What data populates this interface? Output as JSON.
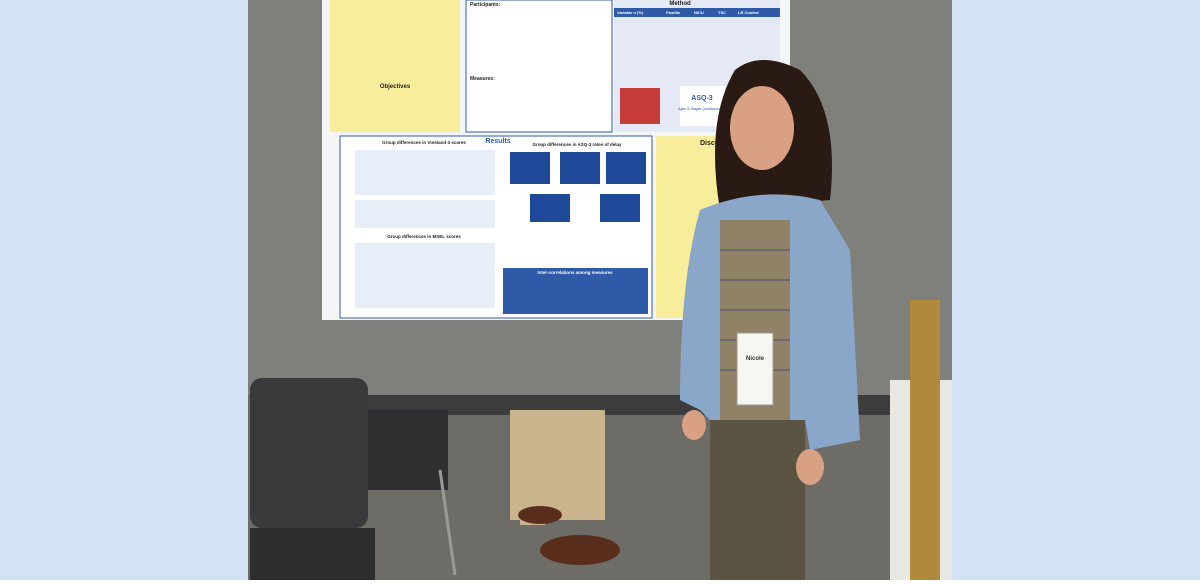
{
  "poster": {
    "sections": [
      "Objectives",
      "Results",
      "Discus",
      "Method"
    ],
    "labels": [
      "Participants:",
      "Measures:"
    ],
    "figures": [
      "Group differences in Vineland-3 scores",
      "Group differences in ASQ-3 rates of delay",
      "Group differences in MSEL scores",
      "Inter-correlations among measures"
    ],
    "table_header": [
      "Variable n (%)",
      "Familia",
      "NICU",
      "TSC",
      "LR Control"
    ],
    "logo": [
      "ASQ-3",
      "Ages & Stages Questionnaires"
    ]
  },
  "badge": {
    "name": "Nicole"
  }
}
